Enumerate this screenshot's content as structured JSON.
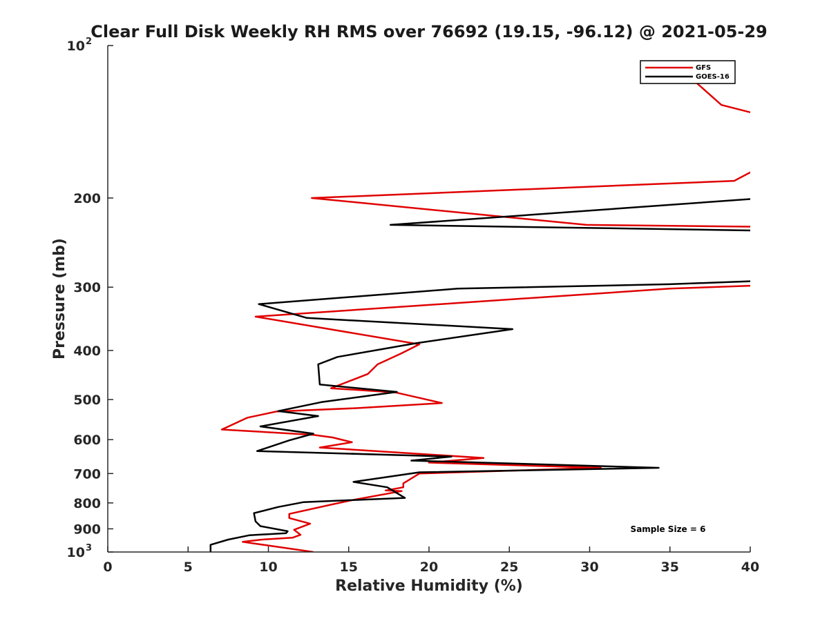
{
  "chart_data": {
    "type": "line",
    "title": "Clear Full Disk Weekly RH RMS over 76692 (19.15, -96.12) @ 2021-05-29",
    "xlabel": "Relative Humidity (%)",
    "ylabel": "Pressure (mb)",
    "xlim": [
      0,
      40
    ],
    "ylim": [
      100,
      1000
    ],
    "yscale": "log",
    "yreversed": true,
    "grid": false,
    "legend_position": "top-right",
    "x_ticks": [
      0,
      5,
      10,
      15,
      20,
      25,
      30,
      35,
      40
    ],
    "x_tick_labels": [
      "0",
      "5",
      "10",
      "15",
      "20",
      "25",
      "30",
      "35",
      "40"
    ],
    "y_ticks": [
      100,
      200,
      300,
      400,
      500,
      600,
      700,
      800,
      900,
      1000
    ],
    "y_tick_labels": [
      {
        "base": "10",
        "exp": "2"
      },
      {
        "base": "200",
        "exp": ""
      },
      {
        "base": "300",
        "exp": ""
      },
      {
        "base": "400",
        "exp": ""
      },
      {
        "base": "500",
        "exp": ""
      },
      {
        "base": "600",
        "exp": ""
      },
      {
        "base": "700",
        "exp": ""
      },
      {
        "base": "800",
        "exp": ""
      },
      {
        "base": "900",
        "exp": ""
      },
      {
        "base": "10",
        "exp": "3"
      }
    ],
    "annotation": "Sample Size = 6",
    "series": [
      {
        "name": "GFS",
        "color": "#e00000",
        "points": [
          [
            36.2,
            115
          ],
          [
            38.2,
            131
          ],
          [
            41.0,
            138
          ],
          [
            41.0,
            176
          ],
          [
            40.0,
            178
          ],
          [
            39.0,
            185
          ],
          [
            12.7,
            200
          ],
          [
            29.8,
            226
          ],
          [
            41.0,
            228
          ],
          [
            41.0,
            297
          ],
          [
            40.0,
            298
          ],
          [
            35.0,
            302
          ],
          [
            9.2,
            343
          ],
          [
            19.4,
            389
          ],
          [
            18.3,
            405
          ],
          [
            16.8,
            426
          ],
          [
            16.2,
            445
          ],
          [
            13.9,
            475
          ],
          [
            17.9,
            484
          ],
          [
            20.8,
            508
          ],
          [
            15.5,
            520
          ],
          [
            10.5,
            528
          ],
          [
            8.7,
            543
          ],
          [
            7.1,
            573
          ],
          [
            12.8,
            587
          ],
          [
            14.0,
            594
          ],
          [
            15.2,
            607
          ],
          [
            13.2,
            622
          ],
          [
            23.4,
            652
          ],
          [
            20.0,
            666
          ],
          [
            30.7,
            682
          ],
          [
            19.4,
            700
          ],
          [
            18.4,
            732
          ],
          [
            18.4,
            745
          ],
          [
            17.3,
            756
          ],
          [
            18.3,
            758
          ],
          [
            15.2,
            790
          ],
          [
            14.0,
            805
          ],
          [
            11.3,
            841
          ],
          [
            11.3,
            857
          ],
          [
            12.6,
            879
          ],
          [
            11.6,
            904
          ],
          [
            12.0,
            925
          ],
          [
            11.5,
            937
          ],
          [
            9.6,
            945
          ],
          [
            8.4,
            955
          ],
          [
            10.3,
            974
          ],
          [
            12.8,
            1000
          ]
        ]
      },
      {
        "name": "GOES-16",
        "color": "#000000",
        "points": [
          [
            41.0,
            200
          ],
          [
            40.0,
            201
          ],
          [
            17.6,
            226
          ],
          [
            41.0,
            232
          ],
          [
            41.0,
            291
          ],
          [
            40.0,
            292
          ],
          [
            35.0,
            296
          ],
          [
            21.8,
            302
          ],
          [
            9.4,
            324
          ],
          [
            12.4,
            345
          ],
          [
            25.2,
            363
          ],
          [
            19.2,
            387
          ],
          [
            14.3,
            412
          ],
          [
            13.1,
            426
          ],
          [
            13.2,
            467
          ],
          [
            18.0,
            483
          ],
          [
            13.3,
            506
          ],
          [
            10.6,
            527
          ],
          [
            13.1,
            539
          ],
          [
            9.5,
            565
          ],
          [
            12.8,
            584
          ],
          [
            11.3,
            602
          ],
          [
            9.3,
            632
          ],
          [
            21.4,
            648
          ],
          [
            18.9,
            660
          ],
          [
            34.3,
            682
          ],
          [
            19.4,
            696
          ],
          [
            15.3,
            727
          ],
          [
            17.4,
            745
          ],
          [
            18.5,
            782
          ],
          [
            12.2,
            797
          ],
          [
            10.6,
            815
          ],
          [
            9.1,
            838
          ],
          [
            9.2,
            870
          ],
          [
            9.5,
            889
          ],
          [
            11.2,
            910
          ],
          [
            11.1,
            918
          ],
          [
            8.8,
            927
          ],
          [
            7.5,
            945
          ],
          [
            6.4,
            968
          ],
          [
            6.4,
            1000
          ]
        ]
      }
    ]
  }
}
